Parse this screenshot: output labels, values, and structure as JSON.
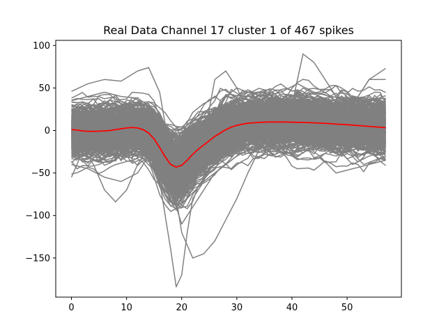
{
  "chart_data": {
    "type": "line",
    "title": "Real Data Channel 17 cluster 1 of 467 spikes",
    "xlabel": "",
    "ylabel": "",
    "xlim": [
      -2.85,
      59.85
    ],
    "ylim": [
      -196,
      106
    ],
    "xticks": [
      0,
      10,
      20,
      30,
      40,
      50
    ],
    "yticks": [
      -150,
      -100,
      -50,
      0,
      50,
      100
    ],
    "x_tick_labels": [
      "0",
      "10",
      "20",
      "30",
      "40",
      "50"
    ],
    "y_tick_labels": [
      "−150",
      "−100",
      "−50",
      "0",
      "50",
      "100"
    ],
    "grid": false,
    "legend": "none",
    "spike_count": 467,
    "samples_per_spike": 58,
    "spike_color": "#808080",
    "mean_color": "#ff0000",
    "mean_waveform": {
      "x": [
        0,
        1,
        2,
        3,
        4,
        5,
        6,
        7,
        8,
        9,
        10,
        11,
        12,
        13,
        14,
        15,
        16,
        17,
        18,
        19,
        20,
        21,
        22,
        23,
        24,
        25,
        26,
        27,
        28,
        29,
        30,
        31,
        32,
        33,
        34,
        35,
        36,
        37,
        38,
        39,
        40,
        41,
        42,
        43,
        44,
        45,
        46,
        47,
        48,
        49,
        50,
        51,
        52,
        53,
        54,
        55,
        56,
        57
      ],
      "y": [
        1,
        0.5,
        -0.5,
        -1,
        -1,
        -0.8,
        -0.5,
        0,
        1,
        2,
        3,
        3.5,
        3,
        1,
        -3,
        -10,
        -20,
        -31,
        -40,
        -43,
        -41,
        -35,
        -28,
        -22,
        -17,
        -12,
        -7,
        -3,
        1,
        4,
        6,
        7.5,
        8.5,
        9,
        9.5,
        9.8,
        10,
        10,
        10,
        10,
        9.8,
        9.6,
        9.5,
        9.2,
        9,
        8.7,
        8.4,
        8,
        7.5,
        7.2,
        6.8,
        6.3,
        5.8,
        5.3,
        4.8,
        4.3,
        3.8,
        3.3
      ]
    },
    "representative_spikes": [
      {
        "x": [
          0,
          3,
          6,
          9,
          12,
          15,
          17,
          19,
          21,
          24,
          27,
          30,
          33,
          36,
          39,
          42,
          45,
          48,
          51,
          54,
          57
        ],
        "y": [
          -55,
          -10,
          10,
          -20,
          -30,
          -40,
          -60,
          -90,
          -80,
          -60,
          -45,
          -30,
          -20,
          -10,
          5,
          0,
          -10,
          -20,
          -40,
          -30,
          -25
        ]
      },
      {
        "x": [
          0,
          3,
          6,
          9,
          12,
          14,
          16,
          18,
          20,
          22,
          24,
          26,
          28,
          30,
          33,
          36,
          39,
          42,
          45,
          48,
          51,
          54,
          57
        ],
        "y": [
          46,
          55,
          60,
          58,
          70,
          74,
          45,
          -30,
          -85,
          -60,
          -10,
          60,
          70,
          50,
          10,
          -5,
          30,
          50,
          40,
          20,
          30,
          60,
          73
        ]
      },
      {
        "x": [
          0,
          2,
          4,
          6,
          8,
          10,
          12,
          14,
          16,
          18,
          19,
          20,
          21,
          22,
          24,
          26,
          28,
          30,
          32,
          34,
          36,
          38,
          40,
          42,
          44,
          46,
          48,
          50,
          52,
          54,
          57
        ],
        "y": [
          0,
          -20,
          -40,
          -70,
          -84,
          -70,
          -40,
          -20,
          -60,
          -140,
          -184,
          -170,
          -120,
          -80,
          -60,
          -50,
          -40,
          -30,
          -10,
          0,
          10,
          20,
          30,
          90,
          80,
          60,
          40,
          30,
          40,
          60,
          60
        ]
      },
      {
        "x": [
          0,
          3,
          6,
          9,
          12,
          15,
          18,
          20,
          22,
          24,
          26,
          28,
          30,
          32,
          35,
          38,
          41,
          44,
          47,
          50,
          53,
          57
        ],
        "y": [
          -40,
          -45,
          -55,
          -60,
          -50,
          -20,
          -40,
          -120,
          -150,
          -145,
          -130,
          -105,
          -80,
          -50,
          -10,
          10,
          20,
          30,
          10,
          -20,
          -40,
          -30
        ]
      },
      {
        "x": [
          0,
          3,
          6,
          9,
          12,
          15,
          18,
          20,
          22,
          24,
          26,
          28,
          30,
          32,
          35,
          38,
          41,
          44,
          47,
          50,
          53,
          57
        ],
        "y": [
          35,
          40,
          45,
          40,
          38,
          25,
          -10,
          -60,
          -40,
          -10,
          20,
          40,
          50,
          45,
          40,
          45,
          55,
          45,
          40,
          38,
          35,
          38
        ]
      },
      {
        "x": [
          0,
          3,
          6,
          9,
          12,
          15,
          18,
          20,
          22,
          24,
          26,
          28,
          30,
          33,
          36,
          39,
          42,
          45,
          48,
          51,
          54,
          57
        ],
        "y": [
          -30,
          -20,
          -35,
          -30,
          -20,
          -35,
          -70,
          -110,
          -90,
          -70,
          -50,
          -40,
          -30,
          -20,
          -10,
          -5,
          -15,
          -30,
          -50,
          -45,
          -40,
          -35
        ]
      }
    ]
  }
}
